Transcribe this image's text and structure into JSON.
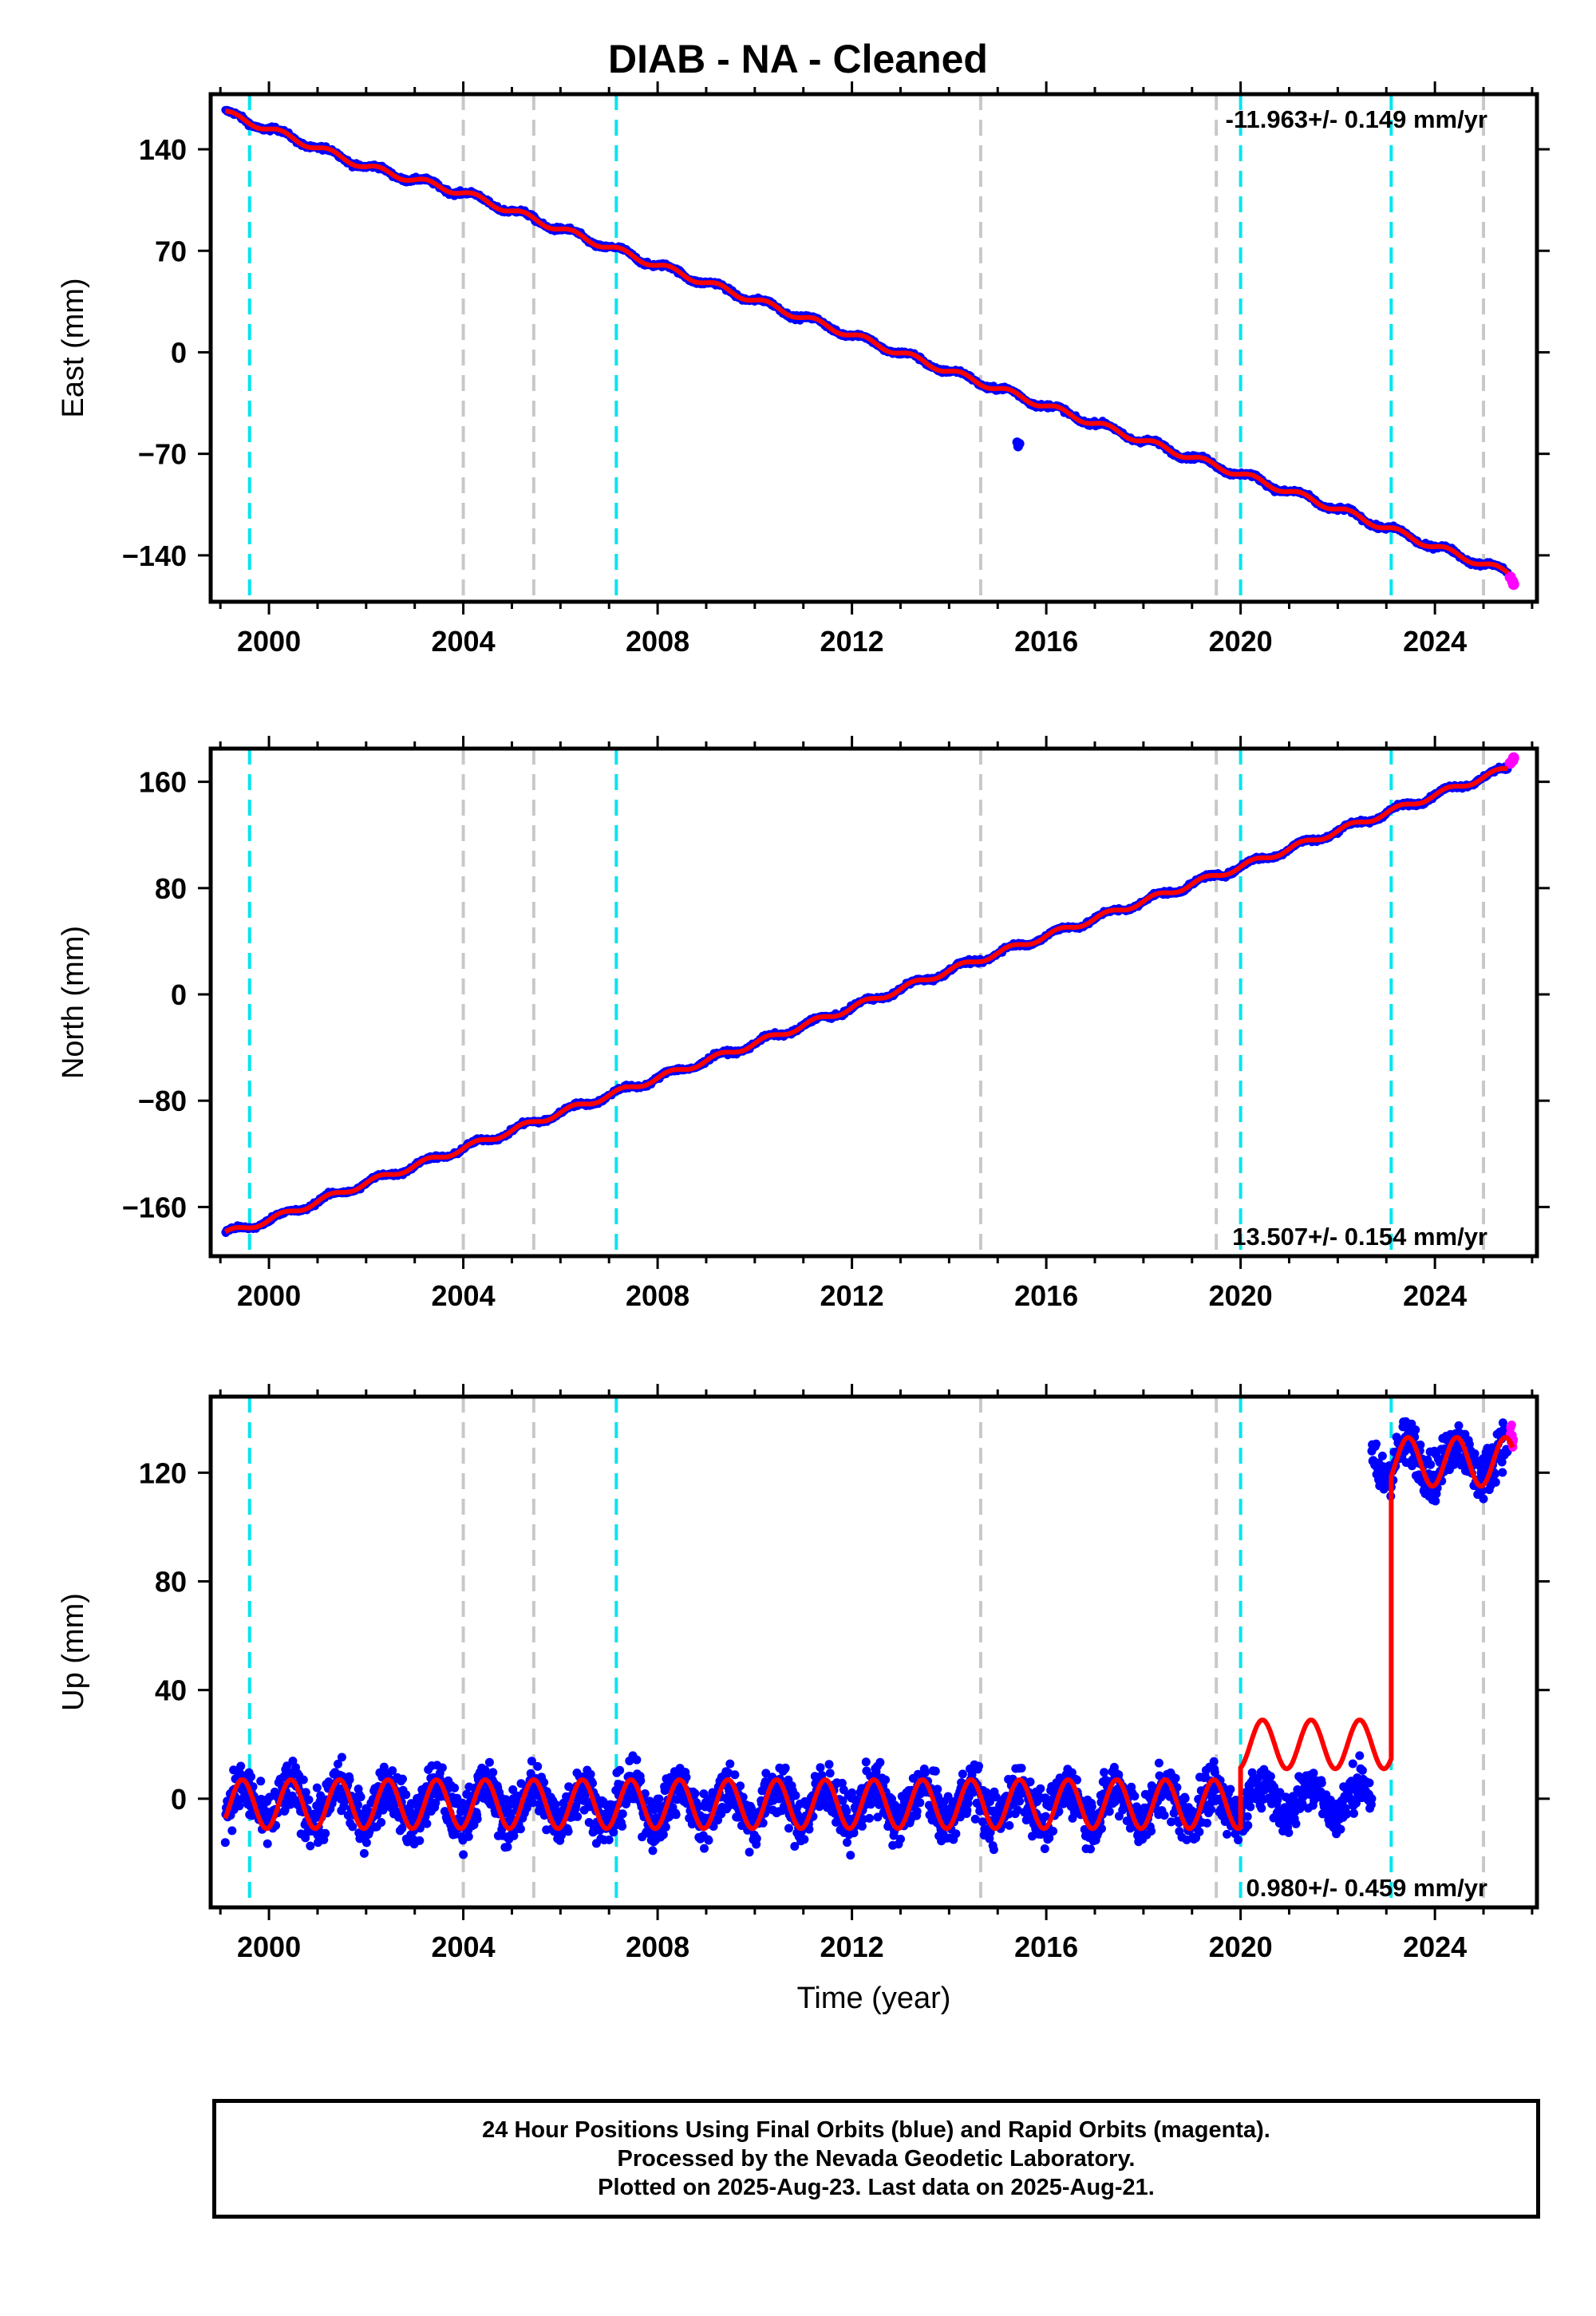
{
  "title": "DIAB  - NA - Cleaned",
  "footer": {
    "line1": "24 Hour Positions Using Final Orbits (blue) and Rapid Orbits (magenta).",
    "line2": "Processed by the Nevada Geodetic Laboratory.",
    "line3": "Plotted on 2025-Aug-23. Last data on 2025-Aug-21."
  },
  "colors": {
    "final_orbits": "#0000ff",
    "rapid_orbits": "#ff00ff",
    "model": "#ff0000",
    "equipment_change": "#c8c8c8",
    "event_line": "#00e5ee"
  },
  "chart_data": [
    {
      "type": "scatter",
      "panel": "east",
      "ylabel": "East (mm)",
      "xlabel": "",
      "xlim": [
        1998.8,
        2026.1
      ],
      "ylim": [
        -172,
        178
      ],
      "xticks": [
        2000,
        2004,
        2008,
        2012,
        2016,
        2020,
        2024
      ],
      "yticks": [
        140,
        70,
        0,
        -70,
        -140
      ],
      "ytick_labels": [
        "140",
        "70",
        "0",
        "−70",
        "−140"
      ],
      "grey_lines": [
        2004.0,
        2005.45,
        2014.65,
        2019.5,
        2025.0
      ],
      "cyan_lines": [
        1999.6,
        2007.15,
        2020.0,
        2023.1
      ],
      "annotation": "-11.963+/- 0.149 mm/yr",
      "annotation_position": "top-right",
      "series": [
        {
          "role": "final",
          "x": [
            1999.1,
            2000,
            2002,
            2004,
            2006,
            2008,
            2010,
            2012,
            2014,
            2016,
            2018,
            2020,
            2022,
            2024,
            2025.5
          ],
          "y": [
            165,
            154,
            128,
            110,
            85,
            60,
            36,
            12,
            -13,
            -37,
            -61,
            -84,
            -108,
            -134,
            -152
          ]
        },
        {
          "role": "rapid",
          "x": [
            2025.55,
            2025.6,
            2025.62
          ],
          "y": [
            -155,
            -158,
            -160
          ]
        },
        {
          "role": "outliers",
          "x": [
            2015.4,
            2015.42,
            2015.45
          ],
          "y": [
            -62,
            -65,
            -63
          ]
        }
      ]
    },
    {
      "type": "scatter",
      "panel": "north",
      "ylabel": "North (mm)",
      "xlabel": "",
      "xlim": [
        1998.8,
        2026.1
      ],
      "ylim": [
        -197,
        185
      ],
      "xticks": [
        2000,
        2004,
        2008,
        2012,
        2016,
        2020,
        2024
      ],
      "yticks": [
        160,
        80,
        0,
        -80,
        -160
      ],
      "ytick_labels": [
        "160",
        "80",
        "0",
        "−80",
        "−160"
      ],
      "grey_lines": [
        2004.0,
        2005.45,
        2014.65,
        2019.5,
        2025.0
      ],
      "cyan_lines": [
        1999.6,
        2007.15,
        2020.0,
        2023.1
      ],
      "annotation": "13.507+/- 0.154 mm/yr",
      "annotation_position": "bottom-right",
      "series": [
        {
          "role": "final",
          "x": [
            1999.1,
            2000,
            2002,
            2004,
            2006,
            2008,
            2010,
            2012,
            2014,
            2016,
            2018,
            2020,
            2022,
            2024,
            2025.5
          ],
          "y": [
            -180,
            -170,
            -142,
            -116,
            -89,
            -63,
            -37,
            -10,
            18,
            44,
            70,
            96,
            123,
            150,
            170
          ]
        },
        {
          "role": "rapid",
          "x": [
            2025.55,
            2025.6,
            2025.62
          ],
          "y": [
            174,
            176,
            178
          ]
        }
      ]
    },
    {
      "type": "scatter",
      "panel": "up",
      "ylabel": "Up (mm)",
      "xlabel": "Time (year)",
      "xlim": [
        1998.8,
        2026.1
      ],
      "ylim": [
        -40,
        148
      ],
      "xticks": [
        2000,
        2004,
        2008,
        2012,
        2016,
        2020,
        2024
      ],
      "yticks": [
        120,
        80,
        40,
        0
      ],
      "ytick_labels": [
        "120",
        "80",
        "40",
        "0"
      ],
      "grey_lines": [
        2004.0,
        2005.45,
        2014.65,
        2019.5,
        2025.0
      ],
      "cyan_lines": [
        1999.6,
        2007.15,
        2020.0,
        2023.1
      ],
      "annotation": "0.980+/- 0.459 mm/yr",
      "annotation_position": "bottom-right",
      "model": {
        "segments": [
          {
            "x": [
              1999.1,
              2020.0
            ],
            "offset": -2,
            "rate": 0.0
          },
          {
            "x": [
              2020.0,
              2023.1
            ],
            "offset": 20,
            "rate": 0.0
          },
          {
            "x": [
              2023.1,
              2025.6
            ],
            "offset": 124,
            "rate": 0.0
          }
        ],
        "annual_amplitude_mm": 9
      },
      "series": [
        {
          "role": "final",
          "x": [
            1999.1,
            2020.0
          ],
          "mean": -2,
          "spread": 22
        },
        {
          "role": "final",
          "x": [
            2020.0,
            2022.7
          ],
          "mean": 0,
          "spread": 18
        },
        {
          "role": "final",
          "x": [
            2022.7,
            2025.5
          ],
          "mean": 125,
          "spread": 20
        },
        {
          "role": "rapid",
          "x": [
            2025.55,
            2025.62
          ],
          "mean": 128,
          "spread": 12
        }
      ]
    }
  ]
}
